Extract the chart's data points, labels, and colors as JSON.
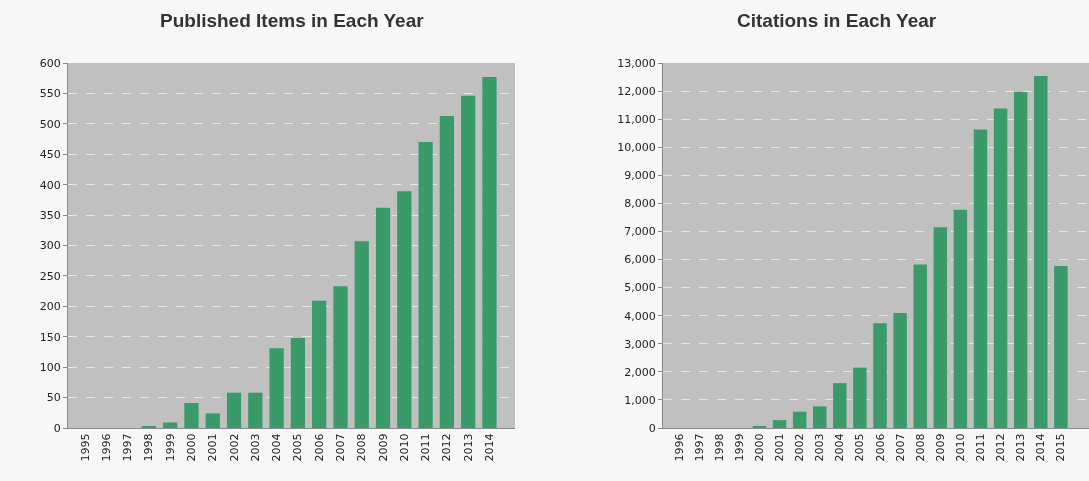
{
  "chart_data": [
    {
      "type": "bar",
      "title": "Published Items in Each Year",
      "categories": [
        "1995",
        "1996",
        "1997",
        "1998",
        "1999",
        "2000",
        "2001",
        "2002",
        "2003",
        "2004",
        "2005",
        "2006",
        "2007",
        "2008",
        "2009",
        "2010",
        "2011",
        "2012",
        "2013",
        "2014"
      ],
      "values": [
        0,
        0,
        0,
        3,
        9,
        41,
        24,
        58,
        58,
        131,
        148,
        209,
        233,
        307,
        362,
        389,
        470,
        513,
        546,
        577
      ],
      "color": "#3a9a6a",
      "ylim": [
        0,
        600
      ],
      "yticks": [
        0,
        50,
        100,
        150,
        200,
        250,
        300,
        350,
        400,
        450,
        500,
        550,
        600
      ],
      "grid": "y"
    },
    {
      "type": "bar",
      "title": "Citations in Each Year",
      "categories": [
        "1996",
        "1997",
        "1998",
        "1999",
        "2000",
        "2001",
        "2002",
        "2003",
        "2004",
        "2005",
        "2006",
        "2007",
        "2008",
        "2009",
        "2010",
        "2011",
        "2012",
        "2013",
        "2014",
        "2015"
      ],
      "values": [
        0,
        0,
        0,
        0,
        70,
        280,
        580,
        770,
        1600,
        2150,
        3730,
        4100,
        5820,
        7150,
        7770,
        10630,
        11380,
        11970,
        12540,
        5770
      ],
      "color": "#3a9a6a",
      "ylim": [
        0,
        13000
      ],
      "yticks": [
        0,
        {
          "value": 1000,
          "label": "1,000"
        },
        {
          "value": 2000,
          "label": "2,000"
        },
        {
          "value": 3000,
          "label": "3,000"
        },
        {
          "value": 4000,
          "label": "4,000"
        },
        {
          "value": 5000,
          "label": "5,000"
        },
        {
          "value": 6000,
          "label": "6,000"
        },
        {
          "value": 7000,
          "label": "7,000"
        },
        {
          "value": 8000,
          "label": "8,000"
        },
        {
          "value": 9000,
          "label": "9,000"
        },
        {
          "value": 10000,
          "label": "10,000"
        },
        {
          "value": 11000,
          "label": "11,000"
        },
        {
          "value": 12000,
          "label": "12,000"
        },
        {
          "value": 13000,
          "label": "13,000"
        }
      ],
      "grid": "y"
    }
  ]
}
